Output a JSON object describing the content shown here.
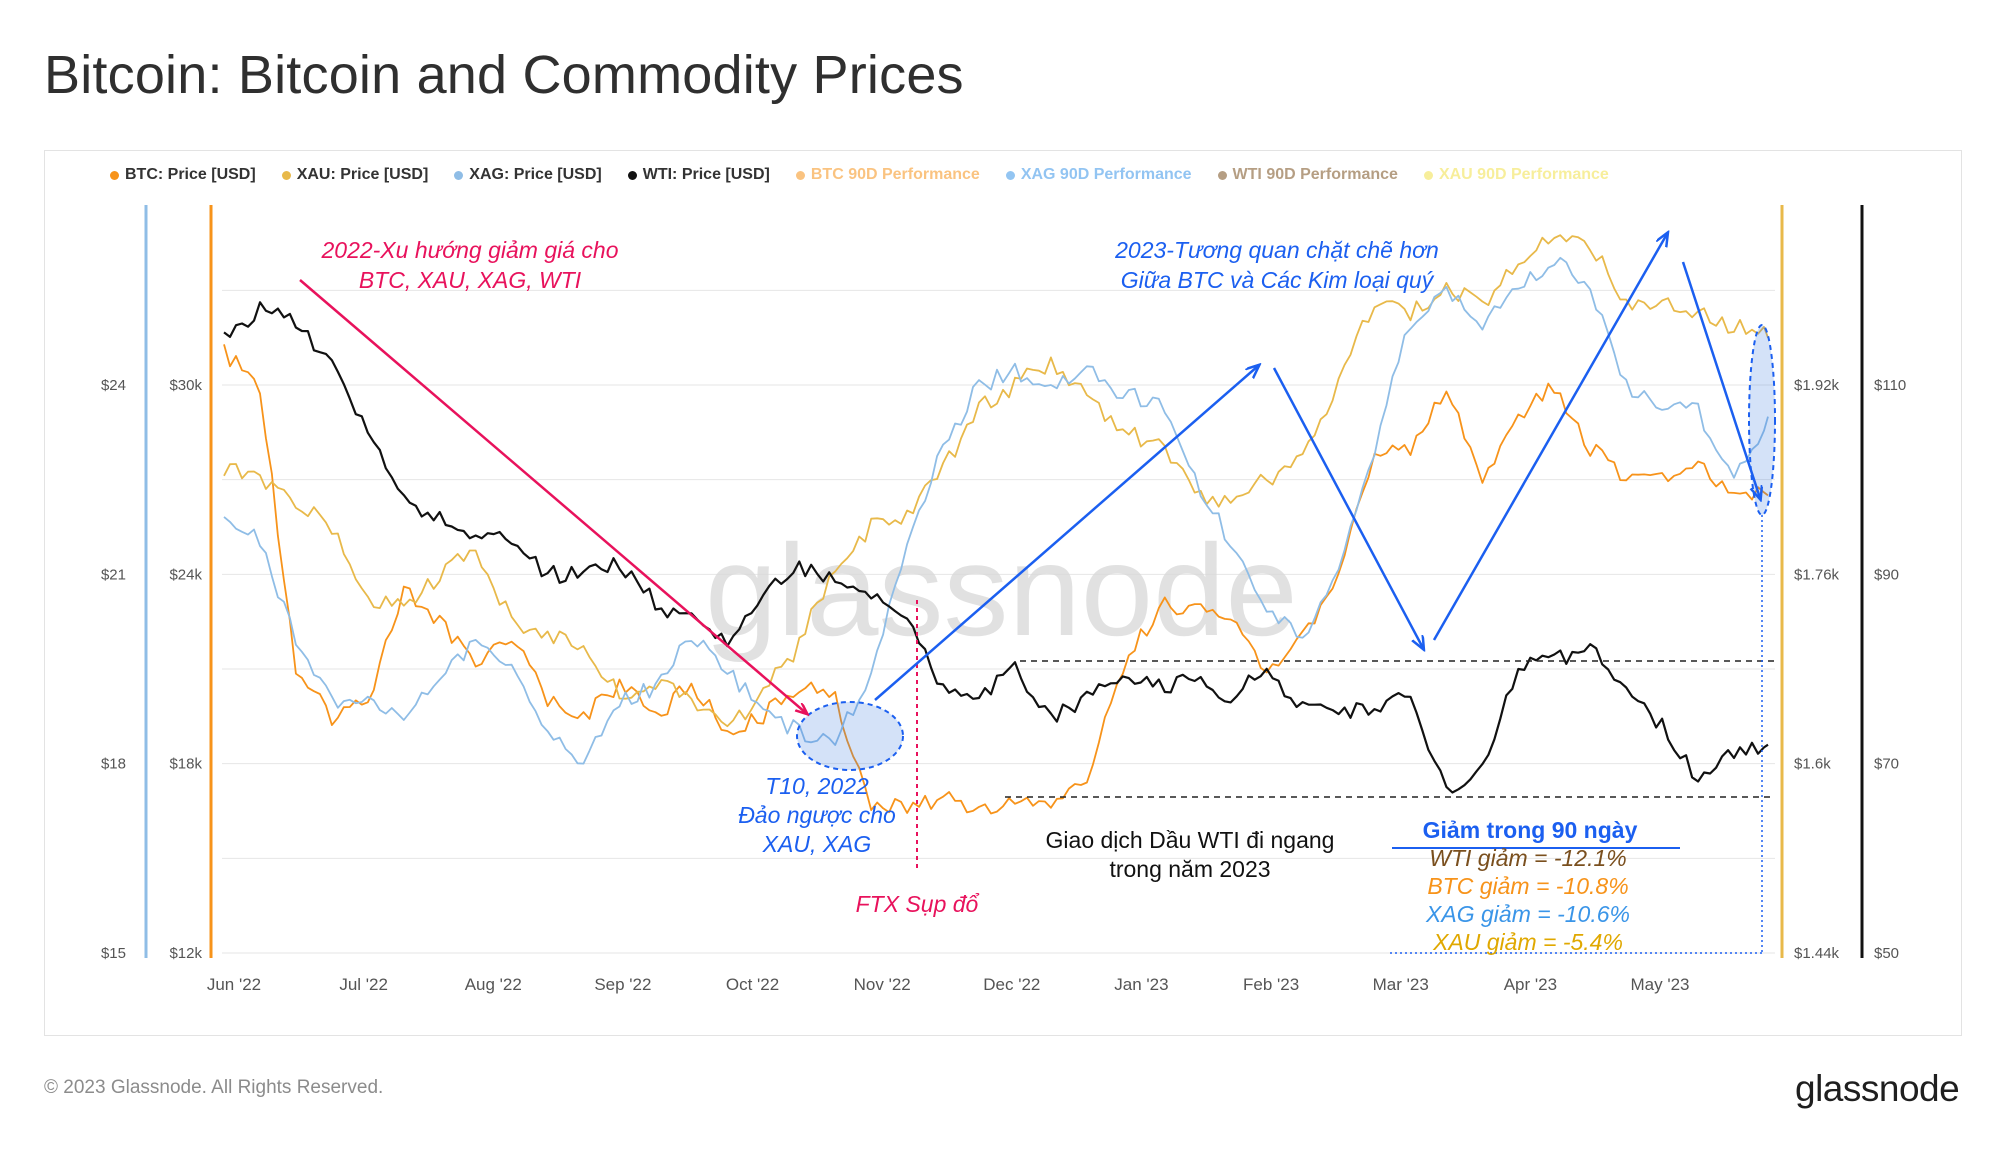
{
  "title": "Bitcoin: Bitcoin and Commodity Prices",
  "footer": {
    "copyright": "© 2023 Glassnode. All Rights Reserved.",
    "brand": "glassnode"
  },
  "watermark": "glassnode",
  "legend": [
    {
      "label": "BTC: Price [USD]",
      "color": "#f7931a",
      "faded": false
    },
    {
      "label": "XAU: Price [USD]",
      "color": "#e8b94a",
      "faded": false
    },
    {
      "label": "XAG: Price [USD]",
      "color": "#8fbde6",
      "faded": false
    },
    {
      "label": "WTI: Price [USD]",
      "color": "#111111",
      "faded": false
    },
    {
      "label": "BTC 90D Performance",
      "color": "#f7931a",
      "faded": true
    },
    {
      "label": "XAG 90D Performance",
      "color": "#3a95e8",
      "faded": true
    },
    {
      "label": "WTI 90D Performance",
      "color": "#7a4f1e",
      "faded": true
    },
    {
      "label": "XAU 90D Performance",
      "color": "#f2e14a",
      "faded": true
    }
  ],
  "chart_data": {
    "type": "line",
    "x_ticks": [
      "Jun '22",
      "Jul '22",
      "Aug '22",
      "Sep '22",
      "Oct '22",
      "Nov '22",
      "Dec '22",
      "Jan '23",
      "Feb '23",
      "Mar '23",
      "Apr '23",
      "May '23"
    ],
    "axes": {
      "xag": {
        "ticks": [
          "$15",
          "$18",
          "$21",
          "$24"
        ],
        "range": [
          15,
          27
        ]
      },
      "btc": {
        "ticks": [
          "$12k",
          "$18k",
          "$24k",
          "$30k"
        ],
        "range": [
          12,
          36
        ],
        "unit": "k"
      },
      "xau": {
        "ticks": [
          "$1.44k",
          "$1.6k",
          "$1.76k",
          "$1.92k"
        ],
        "range": [
          1.44,
          2.08
        ],
        "unit": "k"
      },
      "wti": {
        "ticks": [
          "$50",
          "$70",
          "$90",
          "$110"
        ],
        "range": [
          50,
          130
        ]
      }
    },
    "series": [
      {
        "name": "BTC: Price [USD]",
        "color": "#f7931a",
        "axis": "btc",
        "values": [
          31,
          30,
          21,
          19.5,
          20,
          23.5,
          22.5,
          21,
          22,
          20,
          19.5,
          20.5,
          19.5,
          20.5,
          19,
          19.5,
          20.5,
          20,
          16.8,
          16.5,
          17,
          16.5,
          16.8,
          16.8,
          17.5,
          21,
          23,
          23,
          22.5,
          21,
          22,
          24,
          28,
          28,
          30,
          27,
          29,
          30,
          28,
          27,
          27,
          27.5,
          26.5,
          26.5
        ]
      },
      {
        "name": "XAU: Price [USD]",
        "color": "#e8b94a",
        "axis": "xau",
        "values": [
          1.85,
          1.84,
          1.82,
          1.8,
          1.74,
          1.73,
          1.76,
          1.78,
          1.72,
          1.71,
          1.7,
          1.66,
          1.67,
          1.65,
          1.63,
          1.66,
          1.7,
          1.77,
          1.8,
          1.81,
          1.85,
          1.9,
          1.92,
          1.94,
          1.91,
          1.88,
          1.87,
          1.83,
          1.82,
          1.84,
          1.86,
          1.92,
          1.99,
          1.98,
          2.0,
          1.99,
          2.02,
          2.05,
          2.04,
          1.99,
          1.99,
          1.98,
          1.97,
          1.96
        ]
      },
      {
        "name": "XAG: Price [USD]",
        "color": "#8fbde6",
        "axis": "xag",
        "values": [
          22,
          21.5,
          20,
          19,
          19,
          18.8,
          19.3,
          20,
          19.5,
          18.5,
          18,
          19,
          19.2,
          20,
          19.5,
          18.8,
          18.5,
          18.3,
          19.5,
          21.5,
          23,
          24,
          24.2,
          24.0,
          24.3,
          23.8,
          23.8,
          22.5,
          21.5,
          20.5,
          20.0,
          21,
          23,
          25,
          25.5,
          25,
          25.5,
          26,
          25.5,
          24,
          23.6,
          23.6,
          22.5,
          23.5
        ]
      },
      {
        "name": "WTI: Price [USD]",
        "color": "#111111",
        "axis": "wti",
        "values": [
          115,
          118,
          117,
          112,
          105,
          98,
          96,
          94,
          94,
          90,
          90,
          91,
          87,
          85,
          83,
          88,
          91,
          89,
          88,
          86,
          78,
          77,
          80,
          75,
          77,
          79,
          78,
          79,
          77,
          80,
          76,
          75,
          76,
          77,
          67,
          70,
          80,
          81,
          82,
          78,
          74,
          68,
          71,
          72
        ]
      }
    ]
  },
  "annotations": {
    "trend_2022_line1": "2022-Xu hướng giảm giá cho",
    "trend_2022_line2": "BTC, XAU, XAG, WTI",
    "corr_2023_line1": "2023-Tương quan chặt chẽ hơn",
    "corr_2023_line2": "Giữa BTC và Các Kim loại quý",
    "oct_line1": "T10, 2022",
    "oct_line2": "Đảo ngược cho",
    "oct_line3": "XAU, XAG",
    "ftx": "FTX Sụp đổ",
    "wti_line1": "Giao dịch Dầu WTI đi ngang",
    "wti_line2": "trong năm 2023",
    "drop_title": "Giảm trong 90 ngày",
    "drop_wti": "WTI giảm = -12.1%",
    "drop_btc": "BTC giảm = -10.8%",
    "drop_xag": "XAG giảm = -10.6%",
    "drop_xau": "XAU giảm = -5.4%"
  },
  "colors": {
    "pink": "#e8125c",
    "blue_ann": "#1b5ff0",
    "wti_drop": "#7a4f1e",
    "btc_drop": "#f7931a",
    "xag_drop": "#3a95e8",
    "xau_drop": "#e0a800"
  }
}
